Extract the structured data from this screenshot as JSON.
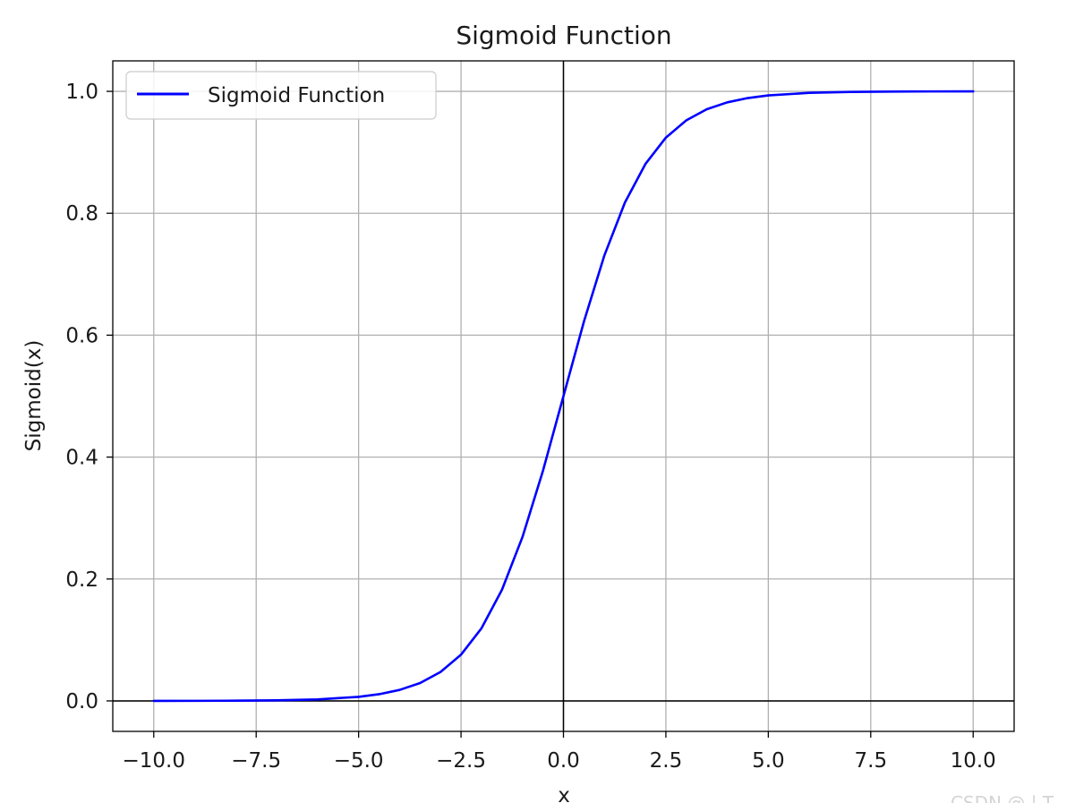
{
  "chart_data": {
    "type": "line",
    "title": "Sigmoid Function",
    "xlabel": "x",
    "ylabel": "Sigmoid(x)",
    "xlim": [
      -11,
      11
    ],
    "ylim": [
      -0.05,
      1.05
    ],
    "xticks": [
      -10,
      -7.5,
      -5,
      -2.5,
      0,
      2.5,
      5,
      7.5,
      10
    ],
    "xtick_labels": [
      "−10.0",
      "−7.5",
      "−5.0",
      "−2.5",
      "0.0",
      "2.5",
      "5.0",
      "7.5",
      "10.0"
    ],
    "yticks": [
      0,
      0.2,
      0.4,
      0.6,
      0.8,
      1.0
    ],
    "ytick_labels": [
      "0.0",
      "0.2",
      "0.4",
      "0.6",
      "0.8",
      "1.0"
    ],
    "grid": true,
    "reference_lines": {
      "x": 0,
      "y": 0
    },
    "legend": {
      "position": "top-left",
      "entries": [
        "Sigmoid Function"
      ]
    },
    "series": [
      {
        "name": "Sigmoid Function",
        "color": "#0000ff",
        "x": [
          -10,
          -9,
          -8,
          -7,
          -6,
          -5,
          -4.5,
          -4,
          -3.5,
          -3,
          -2.5,
          -2,
          -1.5,
          -1,
          -0.5,
          0,
          0.5,
          1,
          1.5,
          2,
          2.5,
          3,
          3.5,
          4,
          4.5,
          5,
          6,
          7,
          8,
          9,
          10
        ],
        "y": [
          5e-05,
          0.00012,
          0.00034,
          0.00091,
          0.00247,
          0.00669,
          0.01099,
          0.01799,
          0.02931,
          0.04743,
          0.07586,
          0.1192,
          0.18243,
          0.26894,
          0.37754,
          0.5,
          0.62246,
          0.73106,
          0.81757,
          0.8808,
          0.92414,
          0.95257,
          0.97069,
          0.98201,
          0.98901,
          0.99331,
          0.99753,
          0.99909,
          0.99966,
          0.99988,
          0.99995
        ]
      }
    ]
  },
  "colors": {
    "line": "#0000ff",
    "grid": "#b0b0b0",
    "axes": "#000000"
  },
  "watermark": "CSDN @ | T"
}
